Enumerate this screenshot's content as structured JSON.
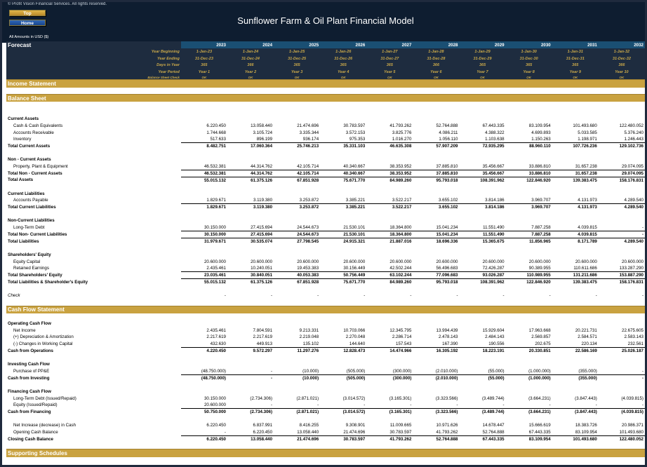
{
  "header": {
    "copyright": "© Profit Vision Financial Services. All rights reserved.",
    "top_label": "Top",
    "home_label": "Home",
    "title": "Sunflower Farm & Oil Plant Financial Model",
    "amounts": "All Amounts in  USD ($)"
  },
  "forecast_label": "Forecast",
  "years": [
    "2023",
    "2024",
    "2025",
    "2026",
    "2027",
    "2028",
    "2029",
    "2030",
    "2031",
    "2032"
  ],
  "hdr_rows": [
    {
      "label": "Year Beginning",
      "vals": [
        "1-Jan-23",
        "1-Jan-24",
        "1-Jan-25",
        "1-Jan-26",
        "1-Jan-27",
        "1-Jan-28",
        "1-Jan-29",
        "1-Jan-30",
        "1-Jan-31",
        "1-Jan-32"
      ]
    },
    {
      "label": "Year Ending",
      "vals": [
        "31-Dec-23",
        "31-Dec-24",
        "31-Dec-25",
        "31-Dec-26",
        "31-Dec-27",
        "31-Dec-28",
        "31-Dec-29",
        "31-Dec-30",
        "31-Dec-31",
        "31-Dec-32"
      ]
    },
    {
      "label": "Days in Year",
      "vals": [
        "365",
        "366",
        "365",
        "365",
        "365",
        "366",
        "365",
        "365",
        "365",
        "366"
      ]
    },
    {
      "label": "Year Period",
      "vals": [
        "Year 1",
        "Year 2",
        "Year 3",
        "Year 4",
        "Year 5",
        "Year 6",
        "Year 7",
        "Year 8",
        "Year 9",
        "Year 10"
      ]
    },
    {
      "label": "Balance Sheet Check",
      "vals": [
        "OK",
        "OK",
        "OK",
        "OK",
        "OK",
        "OK",
        "OK",
        "OK",
        "OK",
        "OK"
      ]
    }
  ],
  "rows": [
    {
      "t": "sec",
      "label": "Income Statement"
    },
    {
      "t": "blank"
    },
    {
      "t": "sec",
      "label": "Balance Sheet"
    },
    {
      "t": "blank"
    },
    {
      "t": "blank"
    },
    {
      "t": "sub",
      "label": "Current Assets"
    },
    {
      "t": "ind",
      "label": "Cash & Cash Equivalents",
      "vals": [
        "6.220.450",
        "13.058.440",
        "21.474.696",
        "30.783.597",
        "41.793.262",
        "52.764.888",
        "67.443.335",
        "83.109.954",
        "101.493.680",
        "122.480.052"
      ]
    },
    {
      "t": "ind",
      "label": "Accounts Receivable",
      "vals": [
        "1.744.668",
        "3.105.724",
        "3.335.344",
        "3.572.153",
        "3.825.776",
        "4.086.211",
        "4.388.322",
        "4.699.893",
        "5.033.585",
        "5.376.240"
      ]
    },
    {
      "t": "ind",
      "label": "Inventory",
      "vals": [
        "517.633",
        "896.199",
        "936.174",
        "975.353",
        "1.016.270",
        "1.056.110",
        "1.103.638",
        "1.150.263",
        "1.198.971",
        "1.246.443"
      ]
    },
    {
      "t": "tot",
      "label": "Total Current Assets",
      "vals": [
        "8.482.751",
        "17.060.364",
        "25.746.213",
        "35.331.103",
        "46.635.308",
        "57.907.209",
        "72.935.295",
        "88.960.110",
        "107.726.236",
        "129.102.736"
      ]
    },
    {
      "t": "blank"
    },
    {
      "t": "sub",
      "label": "Non - Current Assets"
    },
    {
      "t": "ind",
      "label": "Property, Plant & Equipment",
      "vals": [
        "46.532.381",
        "44.314.762",
        "42.105.714",
        "40.340.667",
        "38.353.952",
        "37.885.810",
        "35.456.667",
        "33.886.810",
        "31.657.238",
        "29.074.095"
      ]
    },
    {
      "t": "tot",
      "label": "Total Non - Current Assets",
      "vals": [
        "46.532.381",
        "44.314.762",
        "42.105.714",
        "40.340.667",
        "38.353.952",
        "37.885.810",
        "35.456.667",
        "33.886.810",
        "31.657.238",
        "29.074.095"
      ]
    },
    {
      "t": "tot",
      "label": "Total Assets",
      "vals": [
        "55.015.132",
        "61.375.126",
        "67.851.928",
        "75.671.770",
        "84.989.260",
        "95.793.018",
        "108.391.962",
        "122.846.920",
        "139.383.475",
        "158.176.831"
      ]
    },
    {
      "t": "blank"
    },
    {
      "t": "sub",
      "label": "Current Liabilities"
    },
    {
      "t": "ind",
      "label": "Accounts Payable",
      "vals": [
        "1.829.671",
        "3.119.380",
        "3.253.872",
        "3.385.221",
        "3.522.217",
        "3.655.102",
        "3.814.186",
        "3.969.707",
        "4.131.973",
        "4.289.540"
      ]
    },
    {
      "t": "tot",
      "label": "Total Current Liabilities",
      "vals": [
        "1.829.671",
        "3.119.380",
        "3.253.872",
        "3.385.221",
        "3.522.217",
        "3.655.102",
        "3.814.186",
        "3.969.707",
        "4.131.973",
        "4.289.540"
      ]
    },
    {
      "t": "blank"
    },
    {
      "t": "sub",
      "label": "Non-Current Liabilities"
    },
    {
      "t": "ind",
      "label": "Long-Term Debt",
      "vals": [
        "30.150.000",
        "27.415.694",
        "24.544.673",
        "21.530.101",
        "18.364.800",
        "15.041.234",
        "11.551.490",
        "7.887.258",
        "4.039.815",
        "-"
      ]
    },
    {
      "t": "tot",
      "label": "Total Non- Current Liabilities",
      "vals": [
        "30.150.000",
        "27.415.694",
        "24.544.673",
        "21.530.101",
        "18.364.800",
        "15.041.234",
        "11.551.490",
        "7.887.258",
        "4.039.815",
        "-"
      ]
    },
    {
      "t": "tot",
      "label": "Total Liabilities",
      "vals": [
        "31.979.671",
        "30.535.074",
        "27.798.545",
        "24.915.321",
        "21.887.016",
        "18.696.336",
        "15.365.675",
        "11.856.965",
        "8.171.789",
        "4.289.540"
      ]
    },
    {
      "t": "blank"
    },
    {
      "t": "sub",
      "label": "Shareholders' Equity"
    },
    {
      "t": "ind",
      "label": "Equity Capital",
      "vals": [
        "20.600.000",
        "20.600.000",
        "20.600.000",
        "20.600.000",
        "20.600.000",
        "20.600.000",
        "20.600.000",
        "20.600.000",
        "20.600.000",
        "20.600.000"
      ]
    },
    {
      "t": "ind",
      "label": "Retained Earnings",
      "vals": [
        "2.435.461",
        "10.240.051",
        "19.453.383",
        "30.156.449",
        "42.502.244",
        "56.496.683",
        "72.426.287",
        "90.389.955",
        "110.611.686",
        "133.287.290"
      ]
    },
    {
      "t": "tot",
      "label": "Total Shareholders' Equity",
      "vals": [
        "23.035.461",
        "30.840.051",
        "40.053.383",
        "50.756.449",
        "63.102.244",
        "77.096.683",
        "93.026.287",
        "110.989.955",
        "131.211.686",
        "153.887.290"
      ]
    },
    {
      "t": "tot",
      "label": "Total Liabilities & Shareholder's Equity",
      "vals": [
        "55.015.132",
        "61.375.126",
        "67.851.928",
        "75.671.770",
        "84.989.260",
        "95.793.018",
        "108.391.962",
        "122.846.920",
        "139.383.475",
        "158.176.831"
      ]
    },
    {
      "t": "blank"
    },
    {
      "t": "chk",
      "label": "Check",
      "vals": [
        "-",
        "-",
        "-",
        "-",
        "-",
        "-",
        "-",
        "-",
        "-",
        "-"
      ]
    },
    {
      "t": "blank"
    },
    {
      "t": "sec",
      "label": "Cash Flow Statement"
    },
    {
      "t": "blank"
    },
    {
      "t": "sub",
      "label": "Operating Cash Flow"
    },
    {
      "t": "ind",
      "label": "Net Income",
      "vals": [
        "2.435.461",
        "7.804.591",
        "9.213.331",
        "10.703.066",
        "12.345.795",
        "13.994.439",
        "15.929.604",
        "17.963.668",
        "20.221.731",
        "22.675.605"
      ]
    },
    {
      "t": "ind",
      "label": "(+) Depreciation & Amortization",
      "vals": [
        "2.217.619",
        "2.217.619",
        "2.219.048",
        "2.270.048",
        "2.286.714",
        "2.478.143",
        "2.484.143",
        "2.569.857",
        "2.584.571",
        "2.583.143"
      ]
    },
    {
      "t": "ind",
      "label": "(-) Changes in Working Capital",
      "vals": [
        "432.630",
        "449.913",
        "135.102",
        "144.640",
        "157.543",
        "167.390",
        "190.556",
        "202.675",
        "220.134",
        "232.561"
      ]
    },
    {
      "t": "tot",
      "label": "Cash from Operations",
      "vals": [
        "4.220.450",
        "9.572.297",
        "11.297.276",
        "12.828.473",
        "14.474.966",
        "16.305.192",
        "18.223.191",
        "20.330.851",
        "22.586.169",
        "25.026.187"
      ]
    },
    {
      "t": "blank"
    },
    {
      "t": "sub",
      "label": "Investing Cash Flow"
    },
    {
      "t": "ind",
      "label": "Purchase of PP&E",
      "vals": [
        "(48.750.000)",
        "-",
        "(10.000)",
        "(505.000)",
        "(300.000)",
        "(2.010.000)",
        "(55.000)",
        "(1.000.000)",
        "(355.000)",
        "-"
      ]
    },
    {
      "t": "tot",
      "label": "Cash from Investing",
      "vals": [
        "(48.750.000)",
        "-",
        "(10.000)",
        "(505.000)",
        "(300.000)",
        "(2.010.000)",
        "(55.000)",
        "(1.000.000)",
        "(355.000)",
        "-"
      ]
    },
    {
      "t": "blank"
    },
    {
      "t": "sub",
      "label": "Financing Cash Flow"
    },
    {
      "t": "ind",
      "label": "Long-Term Debt (Issued/Repaid)",
      "vals": [
        "30.150.000",
        "(2.734.306)",
        "(2.871.021)",
        "(3.014.572)",
        "(3.165.301)",
        "(3.323.566)",
        "(3.489.744)",
        "(3.664.231)",
        "(3.847.443)",
        "(4.039.815)"
      ]
    },
    {
      "t": "ind",
      "label": "Equity (Issued/Repaid)",
      "vals": [
        "20.600.000",
        "-",
        "-",
        "-",
        "-",
        "-",
        "-",
        "-",
        "-",
        "-"
      ]
    },
    {
      "t": "tot",
      "label": "Cash from Financing",
      "vals": [
        "50.750.000",
        "(2.734.306)",
        "(2.871.021)",
        "(3.014.572)",
        "(3.165.301)",
        "(3.323.566)",
        "(3.489.744)",
        "(3.664.231)",
        "(3.847.443)",
        "(4.039.815)"
      ]
    },
    {
      "t": "blank"
    },
    {
      "t": "ind",
      "label": "Net Increase (decrease) in Cash",
      "vals": [
        "6.220.450",
        "6.837.991",
        "8.416.255",
        "9.308.901",
        "11.009.665",
        "10.971.626",
        "14.678.447",
        "15.666.619",
        "18.383.726",
        "20.986.371"
      ]
    },
    {
      "t": "ind",
      "label": "Opening Cash Balance",
      "vals": [
        "-",
        "6.220.450",
        "13.058.440",
        "21.474.696",
        "30.783.597",
        "41.793.262",
        "52.764.888",
        "67.443.335",
        "83.109.954",
        "101.493.680"
      ]
    },
    {
      "t": "tot",
      "label": "Closing Cash Balance",
      "vals": [
        "6.220.450",
        "13.058.440",
        "21.474.696",
        "30.783.597",
        "41.793.262",
        "52.764.888",
        "67.443.335",
        "83.109.954",
        "101.493.680",
        "122.480.052"
      ]
    },
    {
      "t": "blank"
    },
    {
      "t": "sec",
      "label": "Supporting Schedules"
    }
  ]
}
